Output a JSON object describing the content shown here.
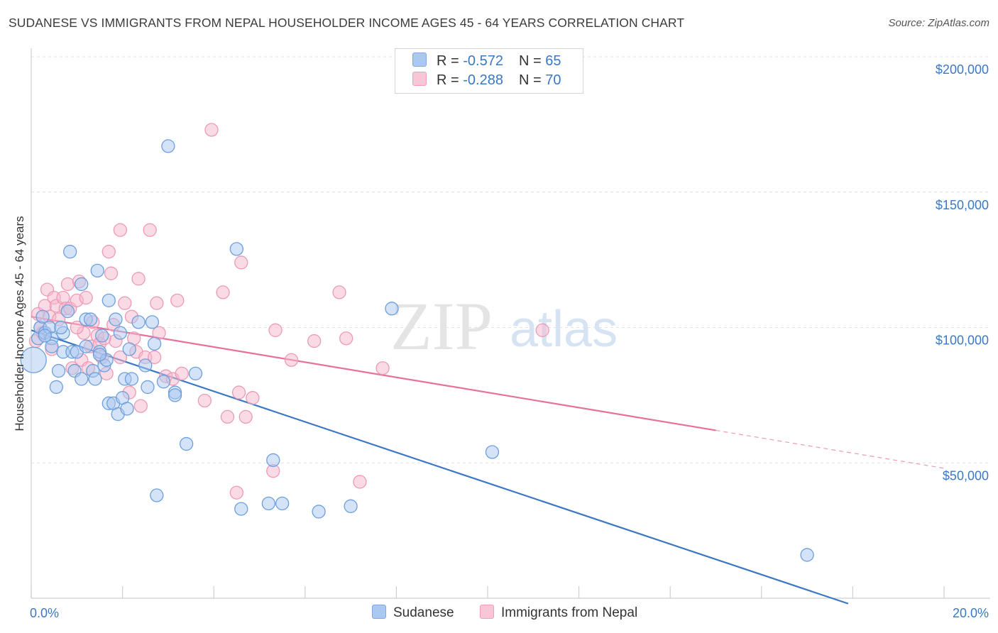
{
  "title": "SUDANESE VS IMMIGRANTS FROM NEPAL HOUSEHOLDER INCOME AGES 45 - 64 YEARS CORRELATION CHART",
  "source": "Source: ZipAtlas.com",
  "colors": {
    "blue": "#3b78c4",
    "blue_fill": "#aac8f0",
    "pink": "#e8709a",
    "pink_fill": "#f5b8cc"
  },
  "legend": {
    "r_label": "R = ",
    "n_label": "N = ",
    "rows": [
      {
        "r": "-0.572",
        "n": "65"
      },
      {
        "r": "-0.288",
        "n": "70"
      }
    ]
  },
  "chart_data": {
    "type": "scatter",
    "xlabel": "",
    "ylabel": "Householder Income Ages 45 - 64 years",
    "xlim": [
      0,
      20
    ],
    "ylim": [
      0,
      200000
    ],
    "x_tick_labels": [
      "0.0%",
      "20.0%"
    ],
    "y_ticks": [
      {
        "value": 50000,
        "label": "$50,000"
      },
      {
        "value": 100000,
        "label": "$100,000"
      },
      {
        "value": 150000,
        "label": "$150,000"
      },
      {
        "value": 200000,
        "label": "$200,000"
      }
    ],
    "grid": true,
    "legend_position": "top-center",
    "series": [
      {
        "name": "Sudanese",
        "trend": {
          "x": [
            0,
            17.9
          ],
          "y": [
            99000,
            -2000
          ]
        },
        "points": [
          [
            0.05,
            88000
          ],
          [
            0.15,
            96000
          ],
          [
            0.2,
            100000
          ],
          [
            0.25,
            104000
          ],
          [
            0.3,
            98000
          ],
          [
            0.4,
            100000
          ],
          [
            0.45,
            96000
          ],
          [
            0.45,
            93000
          ],
          [
            0.55,
            78000
          ],
          [
            0.6,
            84000
          ],
          [
            0.7,
            98000
          ],
          [
            0.7,
            91000
          ],
          [
            0.8,
            106000
          ],
          [
            0.85,
            128000
          ],
          [
            0.9,
            91000
          ],
          [
            0.95,
            84000
          ],
          [
            1.0,
            91000
          ],
          [
            1.1,
            81000
          ],
          [
            1.1,
            116000
          ],
          [
            1.2,
            93000
          ],
          [
            1.2,
            103000
          ],
          [
            1.3,
            103000
          ],
          [
            1.35,
            84000
          ],
          [
            1.4,
            81000
          ],
          [
            1.45,
            121000
          ],
          [
            1.5,
            91000
          ],
          [
            1.55,
            97000
          ],
          [
            1.6,
            86000
          ],
          [
            1.65,
            88000
          ],
          [
            1.7,
            72000
          ],
          [
            1.7,
            110000
          ],
          [
            1.8,
            72000
          ],
          [
            1.85,
            103000
          ],
          [
            1.9,
            68000
          ],
          [
            1.95,
            98000
          ],
          [
            2.0,
            74000
          ],
          [
            2.05,
            81000
          ],
          [
            2.1,
            70000
          ],
          [
            2.15,
            92000
          ],
          [
            2.2,
            81000
          ],
          [
            2.35,
            102000
          ],
          [
            2.5,
            86000
          ],
          [
            2.55,
            78000
          ],
          [
            2.65,
            102000
          ],
          [
            2.7,
            94000
          ],
          [
            2.75,
            38000
          ],
          [
            2.9,
            80000
          ],
          [
            3.0,
            167000
          ],
          [
            3.15,
            76000
          ],
          [
            3.15,
            75000
          ],
          [
            3.4,
            57000
          ],
          [
            3.6,
            83000
          ],
          [
            4.5,
            129000
          ],
          [
            4.6,
            33000
          ],
          [
            5.2,
            35000
          ],
          [
            5.3,
            51000
          ],
          [
            5.5,
            35000
          ],
          [
            6.3,
            32000
          ],
          [
            7.0,
            34000
          ],
          [
            7.9,
            107000
          ],
          [
            10.1,
            54000
          ],
          [
            17.0,
            16000
          ],
          [
            0.3,
            97000
          ],
          [
            1.5,
            90000
          ],
          [
            0.65,
            100000
          ]
        ]
      },
      {
        "name": "Immigrants from Nepal",
        "trend": {
          "x": [
            0,
            15.0
          ],
          "y": [
            104000,
            62000
          ]
        },
        "trend_dashed": {
          "x": [
            15.0,
            20.0
          ],
          "y": [
            62000,
            48000
          ]
        },
        "points": [
          [
            0.1,
            95000
          ],
          [
            0.15,
            105000
          ],
          [
            0.2,
            100000
          ],
          [
            0.3,
            108000
          ],
          [
            0.35,
            114000
          ],
          [
            0.4,
            104000
          ],
          [
            0.5,
            111000
          ],
          [
            0.55,
            108000
          ],
          [
            0.6,
            103000
          ],
          [
            0.7,
            111000
          ],
          [
            0.75,
            107000
          ],
          [
            0.8,
            116000
          ],
          [
            0.85,
            107000
          ],
          [
            0.9,
            85000
          ],
          [
            1.0,
            110000
          ],
          [
            1.05,
            117000
          ],
          [
            1.1,
            88000
          ],
          [
            1.15,
            98000
          ],
          [
            1.2,
            111000
          ],
          [
            1.25,
            85000
          ],
          [
            1.3,
            93000
          ],
          [
            1.35,
            102000
          ],
          [
            1.45,
            97000
          ],
          [
            1.5,
            94000
          ],
          [
            1.55,
            89000
          ],
          [
            1.65,
            83000
          ],
          [
            1.7,
            128000
          ],
          [
            1.75,
            120000
          ],
          [
            1.8,
            101000
          ],
          [
            1.85,
            95000
          ],
          [
            1.95,
            89000
          ],
          [
            1.95,
            136000
          ],
          [
            2.05,
            109000
          ],
          [
            2.15,
            76000
          ],
          [
            2.25,
            96000
          ],
          [
            2.3,
            91000
          ],
          [
            2.35,
            118000
          ],
          [
            2.4,
            71000
          ],
          [
            2.5,
            89000
          ],
          [
            2.6,
            136000
          ],
          [
            2.7,
            89000
          ],
          [
            2.75,
            109000
          ],
          [
            2.8,
            98000
          ],
          [
            2.95,
            82000
          ],
          [
            3.1,
            81000
          ],
          [
            3.2,
            110000
          ],
          [
            3.3,
            83000
          ],
          [
            3.8,
            73000
          ],
          [
            3.95,
            173000
          ],
          [
            4.2,
            113000
          ],
          [
            4.3,
            67000
          ],
          [
            4.5,
            39000
          ],
          [
            4.55,
            76000
          ],
          [
            4.6,
            124000
          ],
          [
            4.7,
            67000
          ],
          [
            4.85,
            74000
          ],
          [
            5.3,
            47000
          ],
          [
            5.35,
            99000
          ],
          [
            5.7,
            88000
          ],
          [
            6.2,
            95000
          ],
          [
            6.75,
            113000
          ],
          [
            6.9,
            96000
          ],
          [
            7.2,
            43000
          ],
          [
            7.7,
            85000
          ],
          [
            11.2,
            99000
          ],
          [
            0.25,
            98000
          ],
          [
            0.45,
            92000
          ],
          [
            1.0,
            100000
          ],
          [
            2.2,
            104000
          ],
          [
            1.6,
            96000
          ]
        ]
      }
    ]
  },
  "bottom_legend": [
    {
      "label": "Sudanese"
    },
    {
      "label": "Immigrants from Nepal"
    }
  ],
  "watermark": {
    "zip": "ZIP",
    "atlas": "atlas"
  }
}
